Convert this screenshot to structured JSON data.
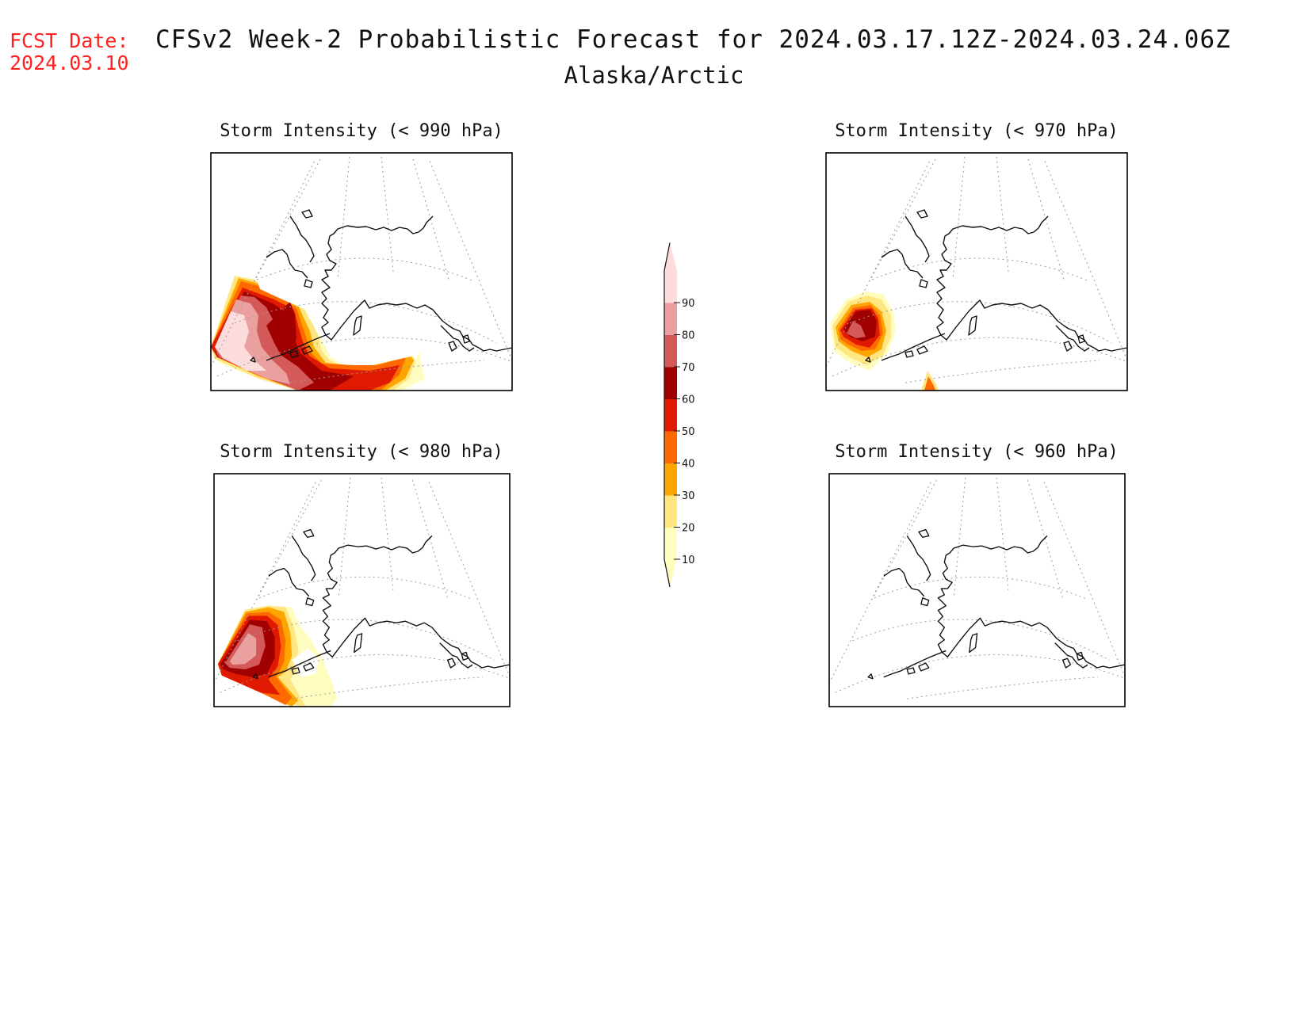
{
  "header": {
    "fcst_label": "FCST Date:",
    "fcst_date": "2024.03.10",
    "title": "CFSv2 Week-2 Probabilistic Forecast for 2024.03.17.12Z-2024.03.24.06Z",
    "subtitle": "Alaska/Arctic"
  },
  "panels": [
    {
      "id": "p990",
      "title": "Storm Intensity (< 990 hPa)"
    },
    {
      "id": "p970",
      "title": "Storm Intensity (< 970 hPa)"
    },
    {
      "id": "p980",
      "title": "Storm Intensity (< 980 hPa)"
    },
    {
      "id": "p960",
      "title": "Storm Intensity (< 960 hPa)"
    }
  ],
  "colorbar": {
    "levels": [
      "10",
      "20",
      "30",
      "40",
      "50",
      "60",
      "70",
      "80",
      "90"
    ],
    "colors": [
      "#fffcc0",
      "#ffe680",
      "#ffa500",
      "#ff6a00",
      "#e01a00",
      "#a00000",
      "#d45a5a",
      "#eba0a0",
      "#fcdcdc"
    ]
  }
}
